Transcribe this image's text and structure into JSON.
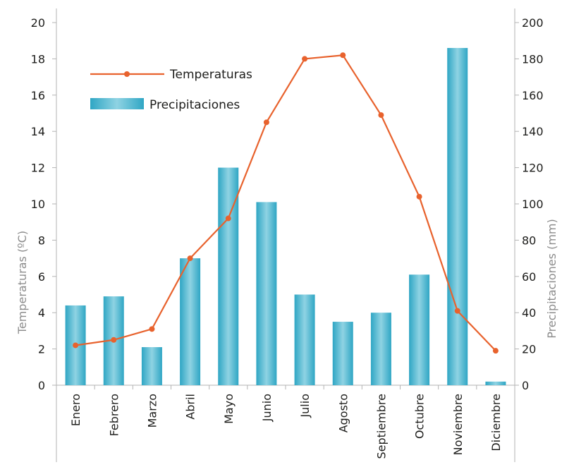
{
  "chart_data": {
    "type": "bar+line",
    "categories": [
      "Enero",
      "Febrero",
      "Marzo",
      "Abril",
      "Mayo",
      "Junio",
      "Julio",
      "Agosto",
      "Septiembre",
      "Octubre",
      "Noviembre",
      "Diciembre"
    ],
    "series": [
      {
        "name": "Precipitaciones",
        "type": "bar",
        "axis": "right",
        "values": [
          44,
          49,
          21,
          70,
          120,
          101,
          50,
          35,
          40,
          61,
          186,
          2
        ],
        "color": "#4db8d1"
      },
      {
        "name": "Temperaturas",
        "type": "line",
        "axis": "left",
        "values": [
          2.2,
          2.5,
          3.1,
          7.0,
          9.2,
          14.5,
          18.0,
          18.2,
          14.9,
          10.4,
          4.1,
          1.9
        ],
        "color": "#e8622d"
      }
    ],
    "ylabel_left": "Temperaturas (ºC)",
    "ylabel_right": "Precipitaciones (mm)",
    "ylim_left": [
      0,
      20
    ],
    "yticks_left": [
      "0",
      "2",
      "4",
      "6",
      "8",
      "10",
      "12",
      "14",
      "16",
      "18",
      "20"
    ],
    "ylim_right": [
      0,
      200
    ],
    "yticks_right": [
      "0",
      "20",
      "40",
      "60",
      "80",
      "100",
      "120",
      "140",
      "160",
      "180",
      "200"
    ],
    "legend": {
      "position": "top-left",
      "line_label": "Temperaturas",
      "bar_label": "Precipitaciones"
    },
    "grid": false
  }
}
